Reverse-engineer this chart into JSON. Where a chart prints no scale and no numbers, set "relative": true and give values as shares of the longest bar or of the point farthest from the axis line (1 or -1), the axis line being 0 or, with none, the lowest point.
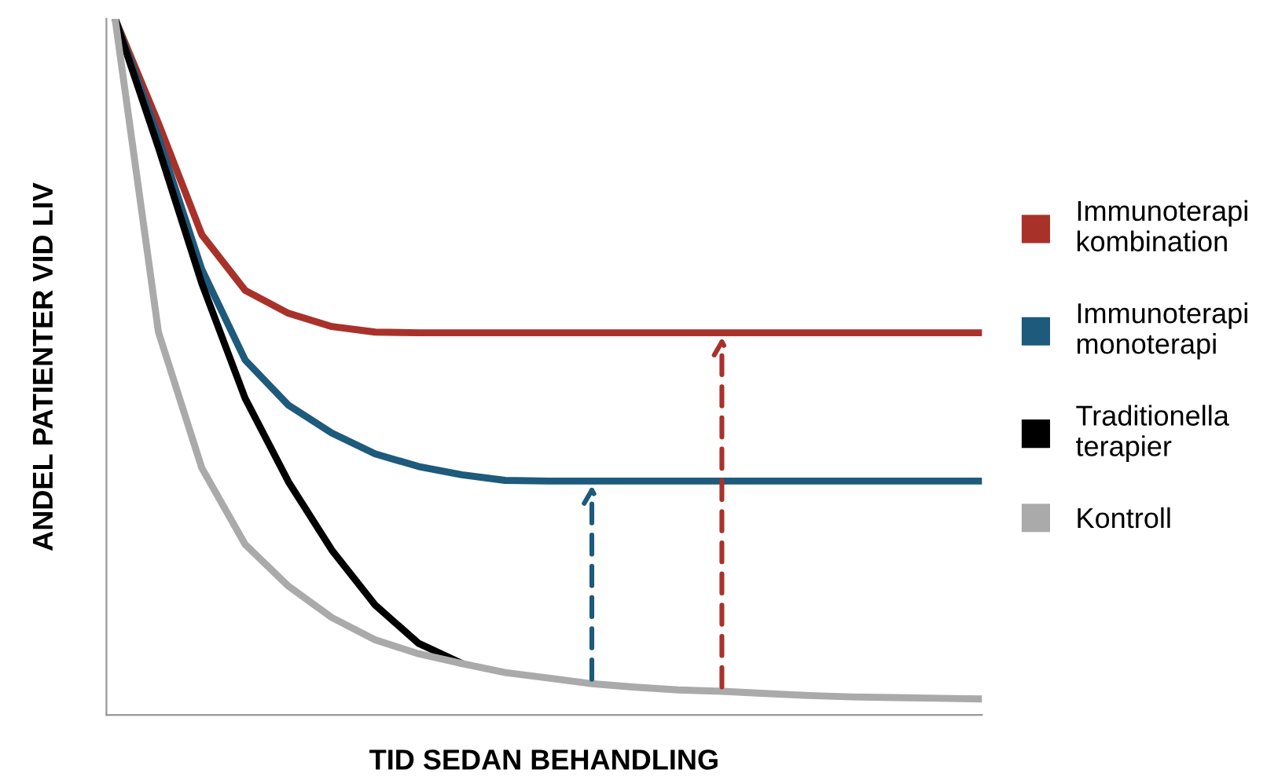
{
  "chart_data": {
    "type": "line",
    "relative": true,
    "xlabel": "TID SEDAN BEHANDLING",
    "ylabel": "ANDEL PATIENTER VID LIV",
    "legend": "right",
    "marker": "none",
    "categories": [
      null,
      null,
      null,
      null,
      null,
      null,
      null,
      null,
      null,
      null,
      null,
      null,
      null,
      null,
      null,
      null,
      null,
      null,
      null,
      null,
      null
    ],
    "series": [
      {
        "name": "Immunoterapi\nkombination",
        "color": "#a8322a",
        "values": [
          1.0,
          0.85,
          0.69,
          0.61,
          0.577,
          0.558,
          0.55,
          0.549,
          0.549,
          0.549,
          0.549,
          0.549,
          0.549,
          0.549,
          0.549,
          0.549,
          0.549,
          0.549,
          0.549,
          0.549,
          0.549
        ]
      },
      {
        "name": "Immunoterapi\nmonoterapi",
        "color": "#1d5a7c",
        "values": [
          1.0,
          0.83,
          0.64,
          0.51,
          0.445,
          0.405,
          0.375,
          0.357,
          0.345,
          0.337,
          0.336,
          0.336,
          0.336,
          0.336,
          0.336,
          0.336,
          0.336,
          0.336,
          0.336,
          0.336,
          0.336
        ]
      },
      {
        "name": "Traditionella\nterapier",
        "color": "#000000",
        "values": [
          1.0,
          0.815,
          0.62,
          0.455,
          0.335,
          0.237,
          0.158,
          0.103,
          0.074,
          null,
          null,
          null,
          null,
          null,
          null,
          null,
          null,
          null,
          null,
          null,
          null
        ]
      },
      {
        "name": "Kontroll",
        "color": "#aaaaaa",
        "values": [
          1.0,
          0.55,
          0.355,
          0.245,
          0.185,
          0.14,
          0.108,
          0.088,
          0.074,
          0.061,
          0.053,
          0.045,
          0.04,
          0.036,
          0.034,
          0.031,
          0.028,
          0.026,
          0.025,
          0.024,
          0.023
        ]
      }
    ]
  }
}
